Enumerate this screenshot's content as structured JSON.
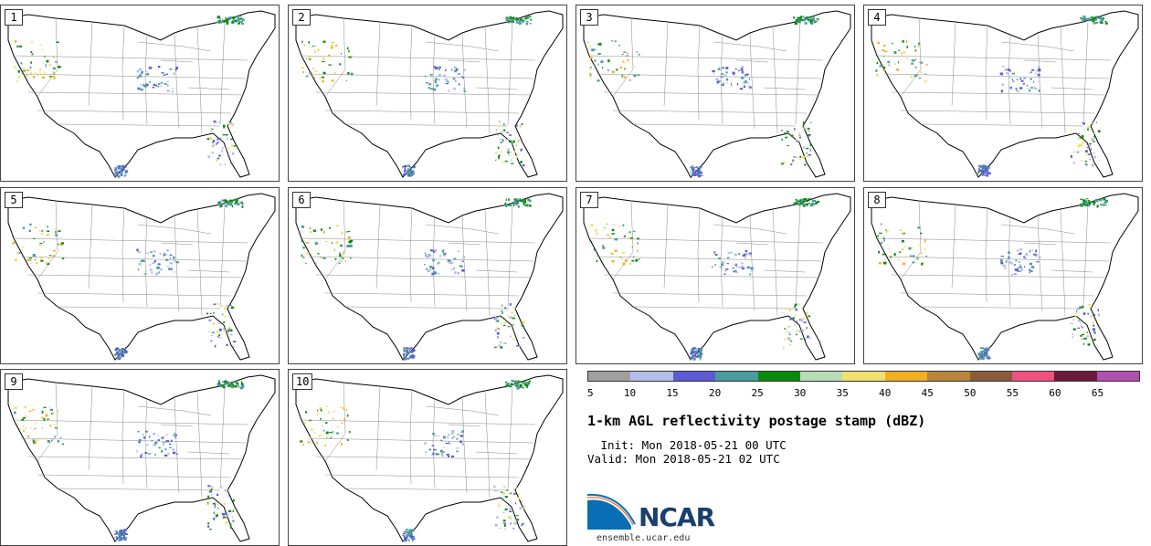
{
  "panels": [
    {
      "label": "1"
    },
    {
      "label": "2"
    },
    {
      "label": "3"
    },
    {
      "label": "4"
    },
    {
      "label": "5"
    },
    {
      "label": "6"
    },
    {
      "label": "7"
    },
    {
      "label": "8"
    },
    {
      "label": "9"
    },
    {
      "label": "10"
    }
  ],
  "colorbar": {
    "colors": [
      "#a0a0a0",
      "#b4bfe8",
      "#5b5bd6",
      "#4a9aa0",
      "#0a8a0a",
      "#b8dcb8",
      "#f0e070",
      "#f0b020",
      "#b8853a",
      "#8b5a3a",
      "#f05080",
      "#6a1a3a",
      "#b050b0"
    ],
    "tick_labels": [
      "5",
      "10",
      "15",
      "20",
      "25",
      "30",
      "35",
      "40",
      "45",
      "50",
      "55",
      "60",
      "65"
    ]
  },
  "title": "1-km AGL reflectivity postage stamp (dBZ)",
  "init": " Init: Mon 2018-05-21 00 UTC",
  "valid": "Valid: Mon 2018-05-21 02 UTC",
  "logo": {
    "text": "NCAR",
    "colors": {
      "blue": "#0a6eb4",
      "navy": "#1a3e6e"
    }
  },
  "site": "ensemble.ucar.edu"
}
